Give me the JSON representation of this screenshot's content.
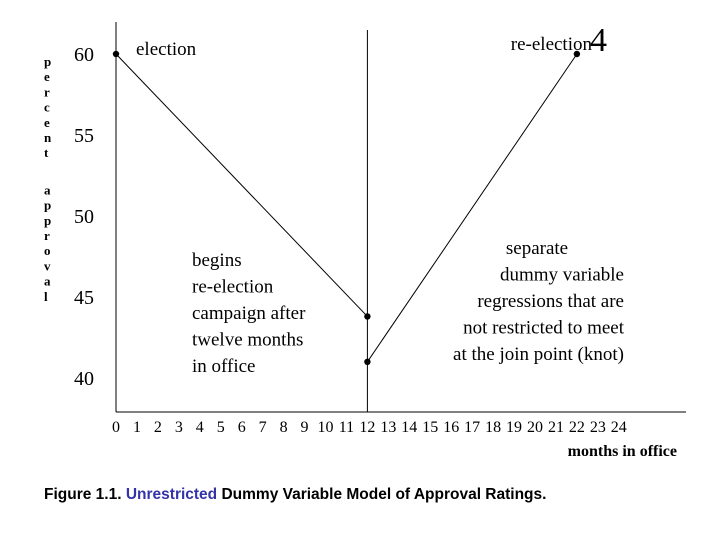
{
  "chart_data": {
    "type": "line",
    "xlabel": "months in office",
    "ylabel": "percent approval",
    "x_ticks": [
      "0",
      "1",
      "2",
      "3",
      "4",
      "5",
      "6",
      "7",
      "8",
      "9",
      "10",
      "11",
      "12",
      "13",
      "14",
      "15",
      "16",
      "17",
      "18",
      "19",
      "20",
      "21",
      "22",
      "23",
      "24"
    ],
    "y_ticks": [
      "40",
      "45",
      "50",
      "55",
      "60"
    ],
    "xlim": [
      0,
      24
    ],
    "ylim": [
      38,
      62
    ],
    "grid": false,
    "knot_x": 12,
    "series": [
      {
        "points": [
          [
            0,
            60
          ],
          [
            12,
            43.8
          ]
        ]
      },
      {
        "points": [
          [
            12,
            41
          ],
          [
            22,
            60
          ]
        ]
      }
    ],
    "annotations": {
      "election": "election",
      "reelection": "re-election",
      "page_number": "4",
      "begins": [
        "begins",
        "re-election",
        "campaign after",
        "twelve months",
        "in office"
      ],
      "separate": [
        "separate",
        "dummy variable",
        "regressions that are",
        "not restricted to meet",
        "at the join point (knot)"
      ]
    }
  },
  "caption": {
    "prefix": "Figure 1.1. ",
    "highlight": "Unrestricted",
    "suffix": " Dummy Variable Model of Approval Ratings."
  },
  "colors": {
    "accent": "#3333aa",
    "line": "#000000"
  }
}
